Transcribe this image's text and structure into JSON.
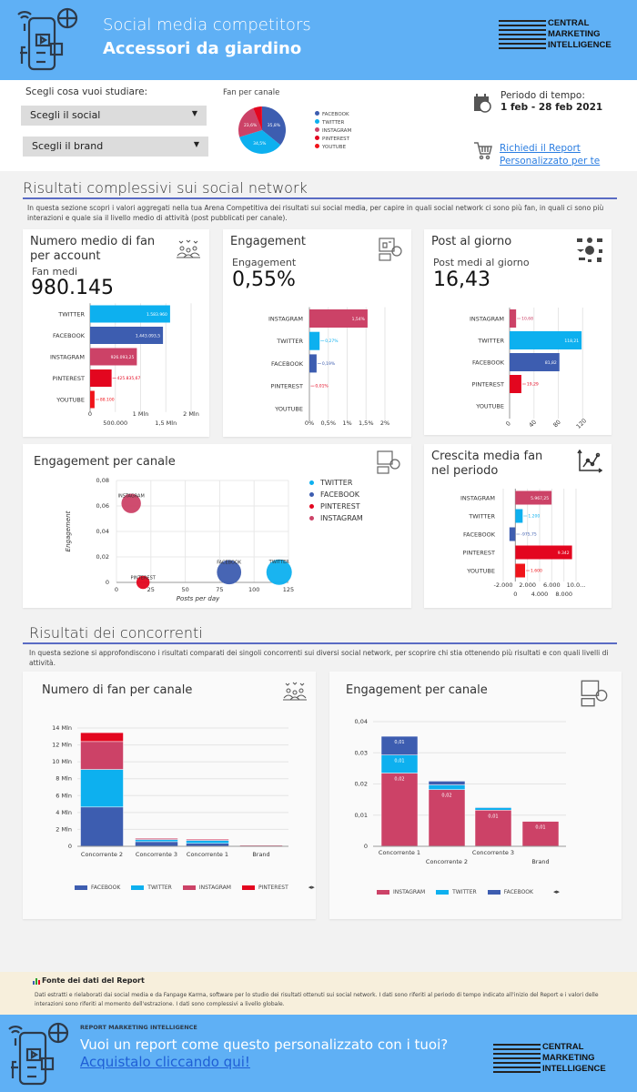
{
  "header": {
    "title": "Social media competitors",
    "subtitle": "Accessori da giardino",
    "logo_text": [
      "CENTRAL",
      "MARKETING",
      "INTELLIGENCE"
    ]
  },
  "controls": {
    "prompt": "Scegli cosa vuoi studiare:",
    "social_select": "Scegli il social",
    "brand_select": "Scegli il brand",
    "period_label": "Periodo di tempo:",
    "period_value": "1 feb - 28 feb 2021",
    "report_link": "Richiedi il Report Personalizzato per te"
  },
  "colors": {
    "facebook": "#3d5db0",
    "twitter": "#0db0ef",
    "instagram": "#cc4267",
    "pinterest": "#e3061f",
    "youtube": "#f0141a",
    "accent": "#5a6bc4",
    "header": "#5fb0f5"
  },
  "section1": {
    "title": "Risultati complessivi sui social network",
    "description": "In questa sezione scopri i valori aggregati nella tua Arena Competitiva dei risultati sui social media, per capire in quali social network ci sono più fan, in quali ci sono più interazioni e quale sia il livello medio di attività (post pubblicati per canale)."
  },
  "cards": {
    "fans": {
      "title": "Numero medio di fan per account",
      "kpi_label": "Fan medi",
      "kpi_value": "980.145",
      "icon": "people-hearts-icon"
    },
    "engagement": {
      "title": "Engagement",
      "kpi_label": "Engagement",
      "kpi_value": "0,55%",
      "icon": "social-engagement-icon"
    },
    "posts": {
      "title": "Post al giorno",
      "kpi_label": "Post medi al giorno",
      "kpi_value": "16,43",
      "icon": "network-icon"
    },
    "bubble": {
      "title": "Engagement per canale",
      "icon": "social-engagement-icon"
    },
    "growth": {
      "title": "Crescita media fan nel periodo",
      "icon": "growth-chart-icon"
    }
  },
  "section2": {
    "title": "Risultati dei concorrenti",
    "description": "In questa sezione si approfondiscono i risultati comparati dei singoli concorrenti sui diversi social network, per scoprire chi stia ottenendo più risultati e con quali livelli di attività."
  },
  "cards2": {
    "fans": {
      "title": "Numero di fan per canale"
    },
    "engagement": {
      "title": "Engagement per canale"
    }
  },
  "source": {
    "title": "Fonte dei dati del Report",
    "text": "Dati estratti e rielaborati dai social media e da Fanpage Karma, software per lo studio dei risultati ottenuti sui social network. I dati sono riferiti al periodo di tempo indicato all'inizio del Report e i valori delle interazioni sono riferiti al momento dell'estrazione. I dati sono complessivi a livello globale."
  },
  "banner": {
    "kicker": "REPORT MARKETING INTELLIGENCE",
    "headline": "Vuoi un report come questo personalizzato con i tuoi?",
    "cta": "Acquistalo cliccando qui!"
  },
  "chart_data": [
    {
      "id": "pie",
      "type": "pie",
      "title": "Fan per canale",
      "categories": [
        "FACEBOOK",
        "TWITTER",
        "INSTAGRAM",
        "PINTEREST",
        "YOUTUBE"
      ],
      "values": [
        35.8,
        34.5,
        23.6,
        6.0,
        0.1
      ],
      "labels": [
        "35,8%",
        "34,5%",
        "23,6%",
        "",
        ""
      ],
      "colors": [
        "#3d5db0",
        "#0db0ef",
        "#cc4267",
        "#e3061f",
        "#f0141a"
      ],
      "legend": "right"
    },
    {
      "id": "fans",
      "type": "bar",
      "orientation": "horizontal",
      "categories": [
        "TWITTER",
        "FACEBOOK",
        "INSTAGRAM",
        "PINTEREST",
        "YOUTUBE"
      ],
      "values": [
        1583960,
        1443093.5,
        926093.25,
        425835.67,
        88100
      ],
      "labels": [
        "1.583.960",
        "1.443.093,5",
        "926.093,25",
        "425.835,67",
        "88.100"
      ],
      "colors": [
        "#0db0ef",
        "#3d5db0",
        "#cc4267",
        "#e3061f",
        "#f0141a"
      ],
      "xlim": [
        0,
        2000000
      ],
      "xticks": [
        {
          "v": 0,
          "label": "0"
        },
        {
          "v": 500000,
          "label": "500.000"
        },
        {
          "v": 1000000,
          "label": "1 Mln"
        },
        {
          "v": 1500000,
          "label": "1,5 Mln"
        },
        {
          "v": 2000000,
          "label": "2 Mln"
        }
      ],
      "grid": true
    },
    {
      "id": "eng",
      "type": "bar",
      "orientation": "horizontal",
      "categories": [
        "INSTAGRAM",
        "TWITTER",
        "FACEBOOK",
        "PINTEREST",
        "YOUTUBE"
      ],
      "values": [
        1.54,
        0.27,
        0.19,
        0.01,
        0
      ],
      "labels": [
        "1,54%",
        "0,27%",
        "0,19%",
        "0,01%",
        ""
      ],
      "colors": [
        "#cc4267",
        "#0db0ef",
        "#3d5db0",
        "#e3061f",
        "#f0141a"
      ],
      "xlim": [
        0,
        2
      ],
      "xticks": [
        {
          "v": 0,
          "label": "0%"
        },
        {
          "v": 0.5,
          "label": "0,5%"
        },
        {
          "v": 1,
          "label": "1%"
        },
        {
          "v": 1.5,
          "label": "1,5%"
        },
        {
          "v": 2,
          "label": "2%"
        }
      ],
      "grid": true
    },
    {
      "id": "posts",
      "type": "bar",
      "orientation": "horizontal",
      "categories": [
        "INSTAGRAM",
        "TWITTER",
        "FACEBOOK",
        "PINTEREST",
        "YOUTUBE"
      ],
      "values": [
        10.68,
        118.21,
        81.82,
        19.29,
        0
      ],
      "labels": [
        "10,68",
        "118,21",
        "81,82",
        "19,29",
        ""
      ],
      "colors": [
        "#cc4267",
        "#0db0ef",
        "#3d5db0",
        "#e3061f",
        "#f0141a"
      ],
      "xlim": [
        0,
        130
      ],
      "xticks": [
        {
          "v": 0,
          "label": "0"
        },
        {
          "v": 40,
          "label": "40"
        },
        {
          "v": 80,
          "label": "80"
        },
        {
          "v": 120,
          "label": "120"
        }
      ],
      "grid": true
    },
    {
      "id": "growth",
      "type": "bar",
      "orientation": "horizontal",
      "categories": [
        "INSTAGRAM",
        "TWITTER",
        "FACEBOOK",
        "PINTEREST",
        "YOUTUBE"
      ],
      "values": [
        5967.25,
        1200,
        -975.75,
        9342,
        1600
      ],
      "labels": [
        "5.967,25",
        "1.200",
        "-975,75",
        "9.342",
        "1.600"
      ],
      "colors": [
        "#cc4267",
        "#0db0ef",
        "#3d5db0",
        "#e3061f",
        "#f0141a"
      ],
      "xlim": [
        -2000,
        10000
      ],
      "xticks": [
        {
          "v": -2000,
          "label": "-2.000"
        },
        {
          "v": 0,
          "label": "0"
        },
        {
          "v": 2000,
          "label": "2.000"
        },
        {
          "v": 4000,
          "label": "4.000"
        },
        {
          "v": 6000,
          "label": "6.000"
        },
        {
          "v": 8000,
          "label": "8.000"
        },
        {
          "v": 10000,
          "label": "10.0..."
        }
      ],
      "grid": true
    },
    {
      "id": "bubble",
      "type": "scatter",
      "title": "Engagement per canale",
      "xlabel": "Posts per day",
      "ylabel": "Engagement",
      "xlim": [
        0,
        125
      ],
      "ylim": [
        0,
        0.08
      ],
      "xticks": [
        {
          "v": 0,
          "label": "0"
        },
        {
          "v": 25,
          "label": "25"
        },
        {
          "v": 50,
          "label": "50"
        },
        {
          "v": 75,
          "label": "75"
        },
        {
          "v": 100,
          "label": "100"
        },
        {
          "v": 125,
          "label": "125"
        }
      ],
      "yticks": [
        {
          "v": 0,
          "label": "0"
        },
        {
          "v": 0.02,
          "label": "0,02"
        },
        {
          "v": 0.04,
          "label": "0,04"
        },
        {
          "v": 0.06,
          "label": "0,06"
        },
        {
          "v": 0.08,
          "label": "0,08"
        }
      ],
      "points": [
        {
          "name": "INSTAGRAM",
          "x": 10.68,
          "y": 0.062,
          "size": 926093,
          "color": "#cc4267"
        },
        {
          "name": "PINTEREST",
          "x": 19.29,
          "y": 0.0,
          "size": 425835,
          "color": "#e3061f"
        },
        {
          "name": "FACEBOOK",
          "x": 81.82,
          "y": 0.008,
          "size": 1443093,
          "color": "#3d5db0"
        },
        {
          "name": "TWITTER",
          "x": 118.21,
          "y": 0.008,
          "size": 1583960,
          "color": "#0db0ef"
        }
      ],
      "legend": [
        {
          "name": "TWITTER",
          "color": "#0db0ef"
        },
        {
          "name": "FACEBOOK",
          "color": "#3d5db0"
        },
        {
          "name": "PINTEREST",
          "color": "#e3061f"
        },
        {
          "name": "INSTAGRAM",
          "color": "#cc4267"
        }
      ],
      "grid": true
    },
    {
      "id": "stackfans",
      "type": "bar",
      "stacked": true,
      "categories": [
        "Concorrente 2",
        "Concorrente 3",
        "Concorrente 1",
        "Brand"
      ],
      "ylim": [
        0,
        14
      ],
      "yticks": [
        {
          "v": 0,
          "label": "0"
        },
        {
          "v": 2,
          "label": "2 Mln"
        },
        {
          "v": 4,
          "label": "4 Mln"
        },
        {
          "v": 6,
          "label": "6 Mln"
        },
        {
          "v": 8,
          "label": "8 Mln"
        },
        {
          "v": 10,
          "label": "10 Mln"
        },
        {
          "v": 12,
          "label": "12 Mln"
        },
        {
          "v": 14,
          "label": "14 Mln"
        }
      ],
      "series": [
        {
          "name": "FACEBOOK",
          "color": "#3d5db0",
          "values": [
            4.65,
            0.55,
            0.35,
            0.02
          ]
        },
        {
          "name": "TWITTER",
          "color": "#0db0ef",
          "values": [
            4.45,
            0.25,
            0.35,
            0.02
          ]
        },
        {
          "name": "INSTAGRAM",
          "color": "#cc4267",
          "values": [
            3.3,
            0.15,
            0.15,
            0.1
          ]
        },
        {
          "name": "PINTEREST",
          "color": "#e3061f",
          "values": [
            1.05,
            0.05,
            0.05,
            0.02
          ]
        }
      ],
      "grid": true,
      "legend": "bottom"
    },
    {
      "id": "stackeng",
      "type": "bar",
      "stacked": true,
      "categories": [
        "Concorrente 1",
        "Concorrente 2",
        "Concorrente 3",
        "Brand"
      ],
      "ylim": [
        0,
        0.04
      ],
      "yticks": [
        {
          "v": 0,
          "label": "0"
        },
        {
          "v": 0.01,
          "label": "0,01"
        },
        {
          "v": 0.02,
          "label": "0,02"
        },
        {
          "v": 0.03,
          "label": "0,03"
        },
        {
          "v": 0.04,
          "label": "0,04"
        }
      ],
      "series": [
        {
          "name": "INSTAGRAM",
          "color": "#cc4267",
          "values": [
            0.0235,
            0.0182,
            0.0116,
            0.008
          ],
          "labels": [
            "0,02",
            "0,02",
            "0,01",
            "0,01"
          ]
        },
        {
          "name": "TWITTER",
          "color": "#0db0ef",
          "values": [
            0.0058,
            0.0015,
            0.0008,
            0
          ],
          "labels": [
            "0,01",
            "",
            "",
            ""
          ]
        },
        {
          "name": "FACEBOOK",
          "color": "#3d5db0",
          "values": [
            0.006,
            0.0012,
            0.0002,
            0
          ],
          "labels": [
            "0,01",
            "",
            "",
            ""
          ]
        }
      ],
      "grid": true,
      "legend": "bottom"
    }
  ]
}
